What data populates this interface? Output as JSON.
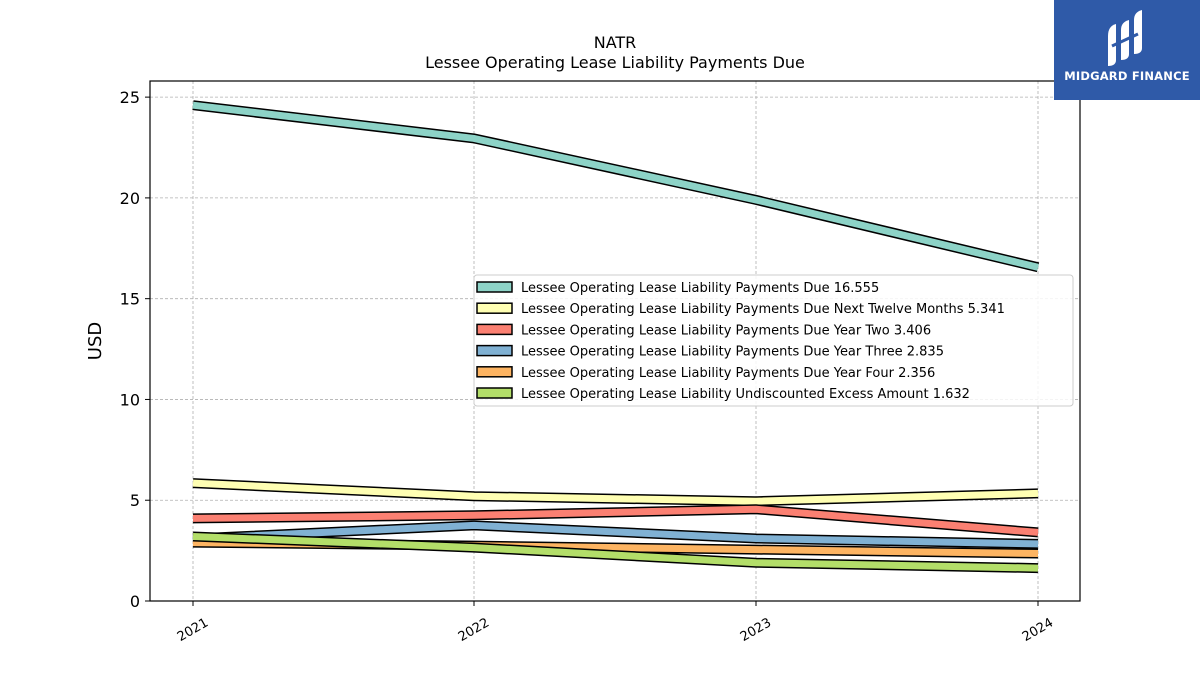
{
  "header": {
    "ticker": "NATR",
    "title": "Lessee Operating Lease Liability Payments Due"
  },
  "logo": {
    "text": "MIDGARD FINANCE",
    "background_color": "#2f5aa8"
  },
  "chart_data": {
    "type": "line",
    "title": "NATR",
    "subtitle": "Lessee Operating Lease Liability Payments Due",
    "xlabel": "",
    "ylabel": "USD",
    "categories": [
      "2021",
      "2022",
      "2023",
      "2024"
    ],
    "ylim": [
      0,
      25.8
    ],
    "yticks": [
      0,
      5,
      10,
      15,
      20,
      25
    ],
    "grid": true,
    "legend_position": "center-right",
    "series": [
      {
        "name": "Lessee Operating Lease Liability Payments Due",
        "legend_label": "Lessee Operating Lease Liability Payments Due  16.555",
        "color": "#8dd3c7",
        "values": [
          24.6,
          22.95,
          19.9,
          16.555
        ]
      },
      {
        "name": "Lessee Operating Lease Liability Payments Due Next Twelve Months",
        "legend_label": "Lessee Operating Lease Liability Payments Due Next Twelve Months  5.341",
        "color": "#ffffb3",
        "values": [
          5.85,
          5.2,
          4.95,
          5.341
        ]
      },
      {
        "name": "Lessee Operating Lease Liability Payments Due Year Two",
        "legend_label": "Lessee Operating Lease Liability Payments Due Year Two  3.406",
        "color": "#fb8072",
        "values": [
          4.1,
          4.25,
          4.55,
          3.406
        ]
      },
      {
        "name": "Lessee Operating Lease Liability Payments Due Year Three",
        "legend_label": "Lessee Operating Lease Liability Payments Due Year Three  2.835",
        "color": "#80b1d3",
        "values": [
          3.1,
          3.75,
          3.1,
          2.835
        ]
      },
      {
        "name": "Lessee Operating Lease Liability Payments Due Year Four",
        "legend_label": "Lessee Operating Lease Liability Payments Due Year Four  2.356",
        "color": "#fdb462",
        "values": [
          2.9,
          2.75,
          2.55,
          2.356
        ]
      },
      {
        "name": "Lessee Operating Lease Liability Undiscounted Excess Amount",
        "legend_label": "Lessee Operating Lease Liability Undiscounted Excess Amount  1.632",
        "color": "#b3de69",
        "values": [
          3.2,
          2.65,
          1.9,
          1.632
        ]
      }
    ]
  }
}
